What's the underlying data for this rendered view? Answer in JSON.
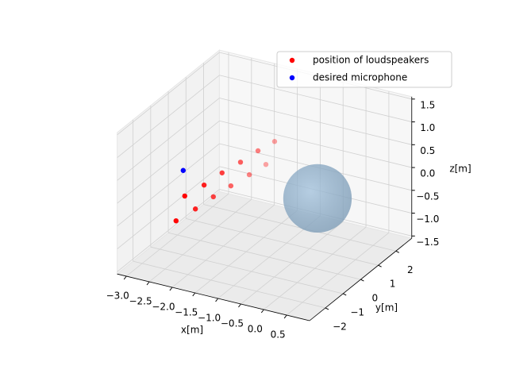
{
  "chart_data": {
    "type": "scatter3d",
    "xlabel": "x[m]",
    "ylabel": "y[m]",
    "zlabel": "z[m]",
    "xlim": [
      -3.2,
      1.0
    ],
    "ylim": [
      -2.9,
      2.9
    ],
    "zlim": [
      -1.55,
      1.55
    ],
    "xticks": [
      {
        "value": -3.0,
        "label": "−3.0"
      },
      {
        "value": -2.5,
        "label": "−2.5"
      },
      {
        "value": -2.0,
        "label": "−2.0"
      },
      {
        "value": -1.5,
        "label": "−1.5"
      },
      {
        "value": -1.0,
        "label": "−1.0"
      },
      {
        "value": -0.5,
        "label": "−0.5"
      },
      {
        "value": 0.0,
        "label": "0.0"
      },
      {
        "value": 0.5,
        "label": "0.5"
      }
    ],
    "yticks": [
      {
        "value": -2,
        "label": "−2"
      },
      {
        "value": -1,
        "label": "−1"
      },
      0,
      1,
      2
    ],
    "zticks": [
      {
        "value": -1.5,
        "label": "−1.5"
      },
      {
        "value": -1.0,
        "label": "−1.0"
      },
      {
        "value": -0.5,
        "label": "−0.5"
      },
      {
        "value": 0.0,
        "label": "0.0"
      },
      {
        "value": 0.5,
        "label": "0.5"
      },
      {
        "value": 1.0,
        "label": "1.0"
      },
      {
        "value": 1.5,
        "label": "1.5"
      }
    ],
    "grid": true,
    "legend": "upper right",
    "series": [
      {
        "name": "position of loudspeakers",
        "color": "#ff0000",
        "x": [
          -2.55,
          -2.32,
          -2.12,
          -1.93,
          -1.72,
          -1.55,
          -2.36,
          -2.13,
          -1.93,
          -1.72,
          -1.53,
          -1.36
        ],
        "y": [
          -1.25,
          -0.75,
          -0.25,
          0.25,
          0.75,
          1.25,
          -1.25,
          -0.75,
          -0.25,
          0.25,
          0.75,
          1.25
        ],
        "z": [
          -0.74,
          -0.58,
          -0.42,
          -0.29,
          -0.15,
          -0.04,
          -0.15,
          -0.01,
          0.15,
          0.28,
          0.42,
          0.51
        ]
      },
      {
        "name": "desired microphone",
        "color": "#0000ff",
        "x": [
          -2.49
        ],
        "y": [
          -1.0
        ],
        "z": [
          0.3
        ]
      }
    ],
    "sphere": {
      "center": [
        -0.52,
        1.5,
        -0.61
      ],
      "radius": 0.75,
      "color": "#8fb4d4"
    }
  }
}
